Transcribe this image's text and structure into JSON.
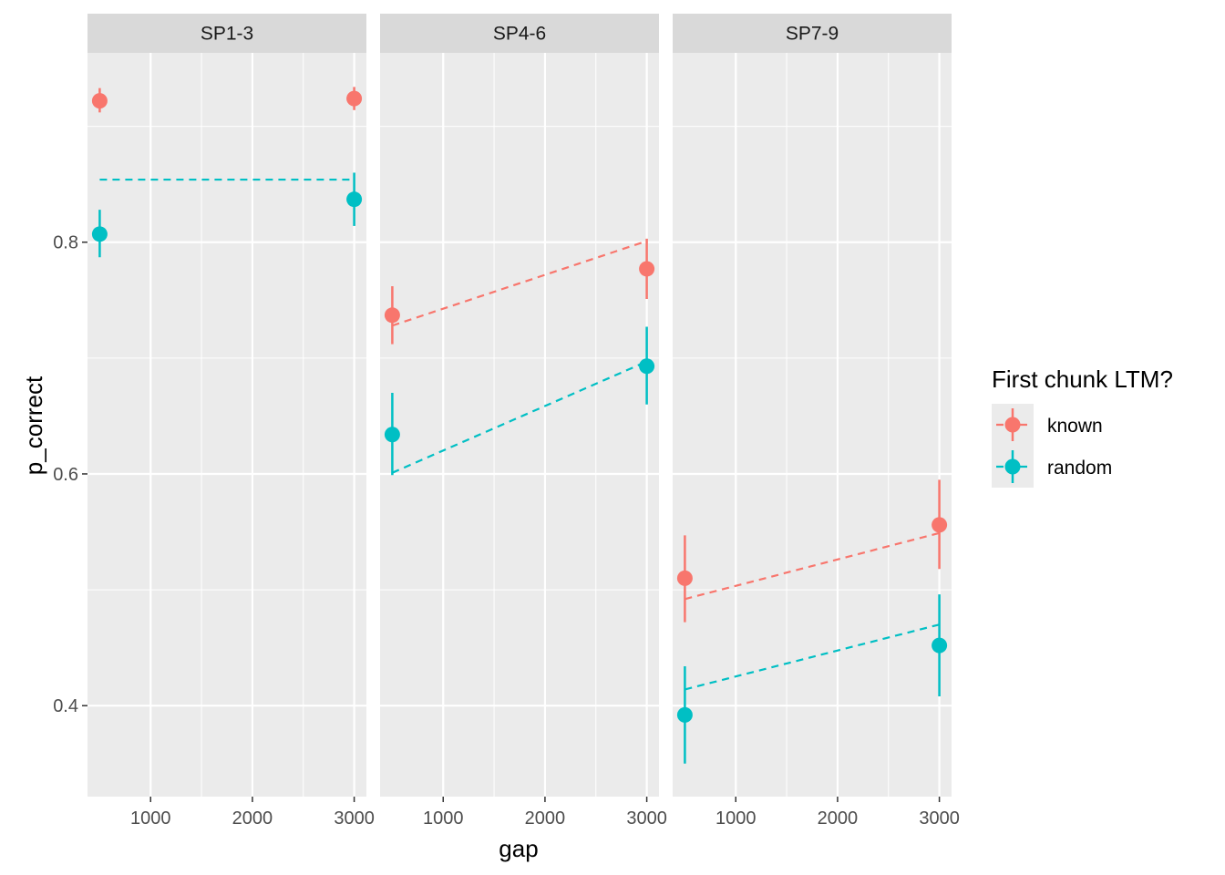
{
  "chart_data": {
    "type": "scatter",
    "facets": [
      {
        "label": "SP1-3",
        "points": {
          "known": [
            {
              "x": 500,
              "y": 0.922,
              "lo": 0.912,
              "hi": 0.933
            },
            {
              "x": 3000,
              "y": 0.924,
              "lo": 0.914,
              "hi": 0.934
            }
          ],
          "random": [
            {
              "x": 500,
              "y": 0.807,
              "lo": 0.787,
              "hi": 0.828
            },
            {
              "x": 3000,
              "y": 0.837,
              "lo": 0.814,
              "hi": 0.86
            }
          ]
        },
        "fits": {
          "random": [
            {
              "x": 500,
              "y": 0.854
            },
            {
              "x": 3000,
              "y": 0.854
            }
          ]
        }
      },
      {
        "label": "SP4-6",
        "points": {
          "known": [
            {
              "x": 500,
              "y": 0.737,
              "lo": 0.712,
              "hi": 0.762
            },
            {
              "x": 3000,
              "y": 0.777,
              "lo": 0.751,
              "hi": 0.803
            }
          ],
          "random": [
            {
              "x": 500,
              "y": 0.634,
              "lo": 0.599,
              "hi": 0.67
            },
            {
              "x": 3000,
              "y": 0.693,
              "lo": 0.66,
              "hi": 0.727
            }
          ]
        },
        "fits": {
          "known": [
            {
              "x": 500,
              "y": 0.728
            },
            {
              "x": 3000,
              "y": 0.801
            }
          ],
          "random": [
            {
              "x": 500,
              "y": 0.601
            },
            {
              "x": 3000,
              "y": 0.697
            }
          ]
        }
      },
      {
        "label": "SP7-9",
        "points": {
          "known": [
            {
              "x": 500,
              "y": 0.51,
              "lo": 0.472,
              "hi": 0.547
            },
            {
              "x": 3000,
              "y": 0.556,
              "lo": 0.518,
              "hi": 0.595
            }
          ],
          "random": [
            {
              "x": 500,
              "y": 0.392,
              "lo": 0.35,
              "hi": 0.434
            },
            {
              "x": 3000,
              "y": 0.452,
              "lo": 0.408,
              "hi": 0.496
            }
          ]
        },
        "fits": {
          "known": [
            {
              "x": 500,
              "y": 0.492
            },
            {
              "x": 3000,
              "y": 0.549
            }
          ],
          "random": [
            {
              "x": 500,
              "y": 0.414
            },
            {
              "x": 3000,
              "y": 0.47
            }
          ]
        }
      }
    ],
    "xlabel": "gap",
    "ylabel": "p_correct",
    "xlim": [
      380,
      3120
    ],
    "ylim": [
      0.3215,
      0.9634
    ],
    "xticks": [
      1000,
      2000,
      3000
    ],
    "xtick_labels": [
      "1000",
      "2000",
      "3000"
    ],
    "yticks": [
      0.4,
      0.6,
      0.8
    ],
    "ytick_labels": [
      "0.4",
      "0.6",
      "0.8"
    ],
    "grid": true,
    "legend": {
      "title": "First chunk LTM?",
      "position": "right",
      "entries": [
        {
          "key": "known",
          "label": "known",
          "color": "#F8766D"
        },
        {
          "key": "random",
          "label": "random",
          "color": "#00BFC4"
        }
      ]
    }
  }
}
